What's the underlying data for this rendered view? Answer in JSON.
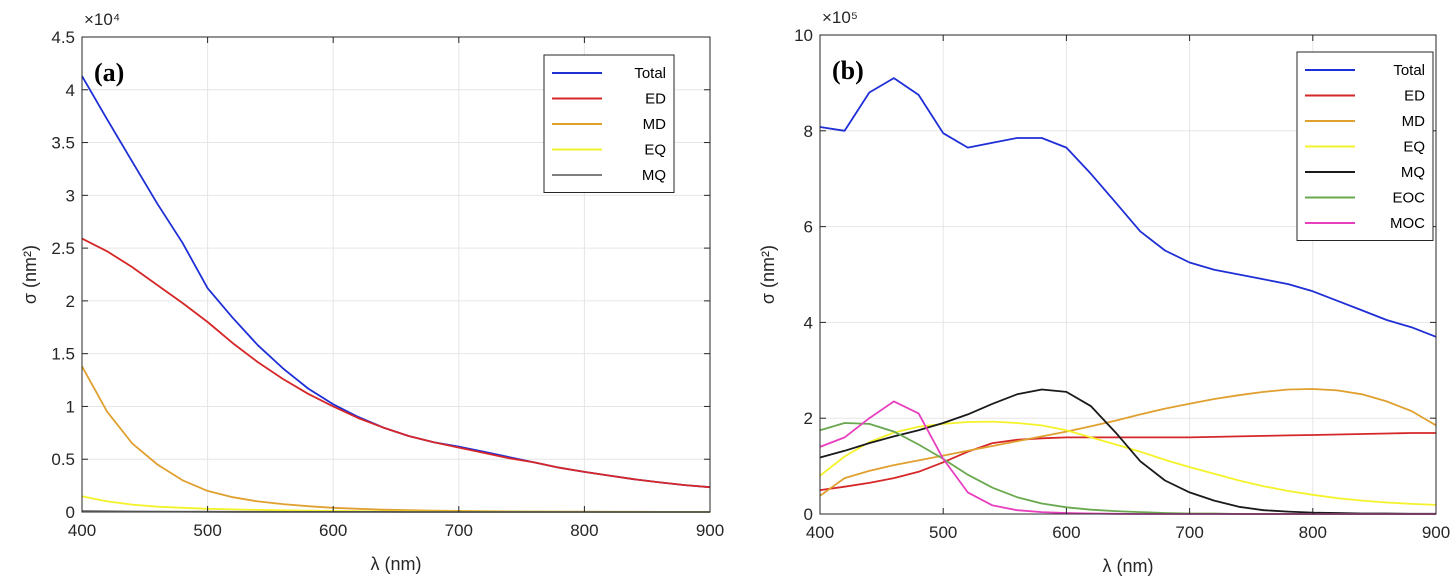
{
  "chart_data": [
    {
      "type": "line",
      "panel_label": "(a)",
      "xlabel": "λ (nm)",
      "ylabel": "σ (nm²)",
      "y_exponent": "×10⁴",
      "xlim": [
        400,
        900
      ],
      "ylim": [
        0,
        4.5
      ],
      "xticks": [
        400,
        500,
        600,
        700,
        800,
        900
      ],
      "yticks": [
        0,
        0.5,
        1,
        1.5,
        2,
        2.5,
        3,
        3.5,
        4,
        4.5
      ],
      "ytick_labels": [
        "0",
        "0.5",
        "1",
        "1.5",
        "2",
        "2.5",
        "3",
        "3.5",
        "4",
        "4.5"
      ],
      "grid": true,
      "legend": "top-right",
      "x": [
        400,
        420,
        440,
        460,
        480,
        500,
        520,
        540,
        560,
        580,
        600,
        620,
        640,
        660,
        680,
        700,
        720,
        740,
        760,
        780,
        800,
        820,
        840,
        860,
        880,
        900
      ],
      "series": [
        {
          "name": "Total",
          "color": "#1f2fd6",
          "values": [
            4.13,
            3.72,
            3.32,
            2.92,
            2.55,
            2.12,
            1.84,
            1.58,
            1.36,
            1.17,
            1.02,
            0.9,
            0.8,
            0.72,
            0.66,
            0.62,
            0.57,
            0.52,
            0.47,
            0.42,
            0.38,
            0.345,
            0.31,
            0.28,
            0.255,
            0.235
          ]
        },
        {
          "name": "ED",
          "color": "#d62728",
          "values": [
            2.59,
            2.47,
            2.32,
            2.15,
            1.98,
            1.8,
            1.6,
            1.42,
            1.26,
            1.12,
            1.0,
            0.89,
            0.8,
            0.72,
            0.66,
            0.61,
            0.56,
            0.51,
            0.47,
            0.42,
            0.38,
            0.345,
            0.31,
            0.28,
            0.255,
            0.235
          ]
        },
        {
          "name": "MD",
          "color": "#e0a030",
          "values": [
            1.38,
            0.95,
            0.65,
            0.45,
            0.3,
            0.2,
            0.14,
            0.1,
            0.075,
            0.055,
            0.04,
            0.03,
            0.022,
            0.017,
            0.013,
            0.01,
            0.008,
            0.006,
            0.005,
            0.004,
            0.003,
            0.002,
            0.002,
            0.001,
            0.001,
            0.001
          ]
        },
        {
          "name": "EQ",
          "color": "#f4f22a",
          "values": [
            0.15,
            0.1,
            0.07,
            0.05,
            0.04,
            0.03,
            0.025,
            0.02,
            0.016,
            0.013,
            0.01,
            0.008,
            0.006,
            0.005,
            0.004,
            0.003,
            0.003,
            0.002,
            0.002,
            0.002,
            0.001,
            0.001,
            0.001,
            0.001,
            0.001,
            0.001
          ]
        },
        {
          "name": "MQ",
          "color": "#7f7f7f",
          "values": [
            0.01,
            0.008,
            0.006,
            0.005,
            0.004,
            0.003,
            0.002,
            0.002,
            0.001,
            0.001,
            0.001,
            0.001,
            0.001,
            0.0,
            0.0,
            0.0,
            0.0,
            0.0,
            0.0,
            0.0,
            0.0,
            0.0,
            0.0,
            0.0,
            0.0,
            0.0
          ]
        }
      ]
    },
    {
      "type": "line",
      "panel_label": "(b)",
      "xlabel": "λ (nm)",
      "ylabel": "σ (nm²)",
      "y_exponent": "×10⁵",
      "xlim": [
        400,
        900
      ],
      "ylim": [
        0,
        10
      ],
      "xticks": [
        400,
        500,
        600,
        700,
        800,
        900
      ],
      "yticks": [
        0,
        2,
        4,
        6,
        8,
        10
      ],
      "ytick_labels": [
        "0",
        "2",
        "4",
        "6",
        "8",
        "10"
      ],
      "grid": true,
      "legend": "top-right",
      "x": [
        400,
        420,
        440,
        460,
        480,
        500,
        520,
        540,
        560,
        580,
        600,
        620,
        640,
        660,
        680,
        700,
        720,
        740,
        760,
        780,
        800,
        820,
        840,
        860,
        880,
        900
      ],
      "series": [
        {
          "name": "Total",
          "color": "#1f2fd6",
          "values": [
            8.08,
            8.0,
            8.8,
            9.1,
            8.75,
            7.95,
            7.65,
            7.75,
            7.85,
            7.85,
            7.65,
            7.1,
            6.5,
            5.9,
            5.5,
            5.25,
            5.1,
            5.0,
            4.9,
            4.8,
            4.65,
            4.45,
            4.25,
            4.05,
            3.9,
            3.7
          ]
        },
        {
          "name": "ED",
          "color": "#d62728",
          "values": [
            0.5,
            0.57,
            0.65,
            0.75,
            0.88,
            1.08,
            1.3,
            1.48,
            1.55,
            1.58,
            1.6,
            1.6,
            1.6,
            1.6,
            1.6,
            1.6,
            1.61,
            1.62,
            1.63,
            1.64,
            1.65,
            1.66,
            1.67,
            1.68,
            1.69,
            1.69
          ]
        },
        {
          "name": "MD",
          "color": "#e0a030",
          "values": [
            0.38,
            0.75,
            0.9,
            1.02,
            1.12,
            1.22,
            1.32,
            1.42,
            1.52,
            1.62,
            1.72,
            1.83,
            1.95,
            2.08,
            2.2,
            2.3,
            2.4,
            2.48,
            2.55,
            2.6,
            2.61,
            2.58,
            2.5,
            2.35,
            2.15,
            1.85
          ]
        },
        {
          "name": "EQ",
          "color": "#f4f22a",
          "values": [
            0.8,
            1.2,
            1.5,
            1.7,
            1.82,
            1.88,
            1.92,
            1.93,
            1.9,
            1.85,
            1.75,
            1.6,
            1.45,
            1.3,
            1.13,
            0.98,
            0.84,
            0.7,
            0.58,
            0.48,
            0.4,
            0.33,
            0.28,
            0.24,
            0.21,
            0.19
          ]
        },
        {
          "name": "MQ",
          "color": "#1a1a1a",
          "values": [
            1.18,
            1.32,
            1.48,
            1.62,
            1.75,
            1.9,
            2.08,
            2.3,
            2.5,
            2.6,
            2.55,
            2.25,
            1.7,
            1.1,
            0.7,
            0.45,
            0.28,
            0.15,
            0.08,
            0.05,
            0.03,
            0.02,
            0.01,
            0.01,
            0.005,
            0.005
          ]
        },
        {
          "name": "EOC",
          "color": "#6aa84f",
          "values": [
            1.75,
            1.9,
            1.88,
            1.72,
            1.45,
            1.15,
            0.82,
            0.55,
            0.35,
            0.22,
            0.14,
            0.09,
            0.06,
            0.04,
            0.02,
            0.01,
            0.01,
            0.0,
            0.0,
            0.0,
            0.0,
            0.0,
            0.0,
            0.0,
            0.0,
            0.0
          ]
        },
        {
          "name": "MOC",
          "color": "#e83fbf",
          "values": [
            1.4,
            1.6,
            2.0,
            2.35,
            2.1,
            1.15,
            0.45,
            0.18,
            0.08,
            0.04,
            0.02,
            0.01,
            0.005,
            0.0,
            0.0,
            0.0,
            0.0,
            0.0,
            0.0,
            0.0,
            0.0,
            0.0,
            0.0,
            0.0,
            0.0,
            0.0
          ]
        }
      ]
    }
  ]
}
